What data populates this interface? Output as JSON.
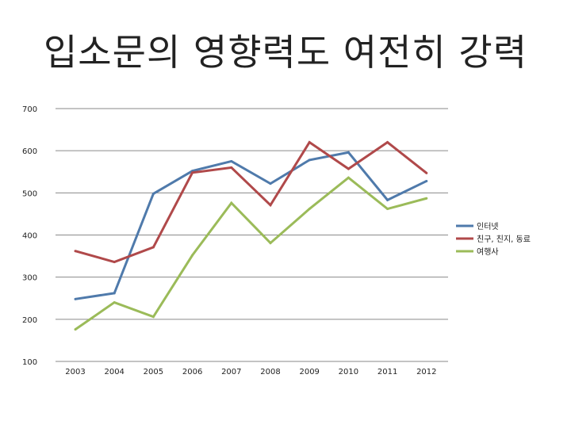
{
  "title": "입소문의 영향력도 여전히 강력",
  "chart_data": {
    "type": "line",
    "title": "",
    "xlabel": "",
    "ylabel": "",
    "ylim": [
      100,
      700
    ],
    "yticks": [
      700,
      600,
      500,
      400,
      300,
      200,
      100
    ],
    "categories": [
      "2003",
      "2004",
      "2005",
      "2006",
      "2007",
      "2008",
      "2009",
      "2010",
      "2011",
      "2012"
    ],
    "grid": true,
    "legend_position": "right",
    "series": [
      {
        "name": "인터넷",
        "color": "#4f7aab",
        "values": [
          248,
          262,
          498,
          552,
          575,
          522,
          578,
          596,
          483,
          528
        ]
      },
      {
        "name": "친구, 친지, 동료",
        "color": "#b0494a",
        "values": [
          362,
          336,
          371,
          548,
          560,
          471,
          620,
          557,
          620,
          547
        ]
      },
      {
        "name": "여행사",
        "color": "#9bbb59",
        "values": [
          176,
          240,
          206,
          352,
          476,
          381,
          462,
          536,
          462,
          487
        ]
      }
    ]
  }
}
